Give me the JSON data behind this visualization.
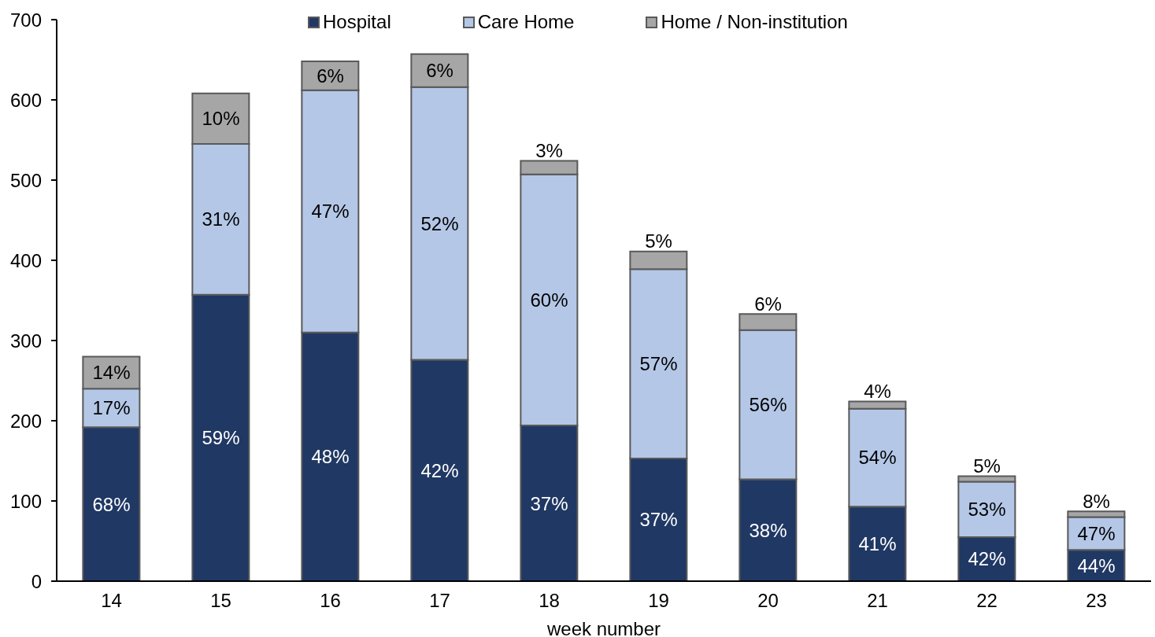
{
  "chart_data": {
    "type": "bar",
    "stacked": true,
    "xlabel": "week number",
    "categories": [
      "14",
      "15",
      "16",
      "17",
      "18",
      "19",
      "20",
      "21",
      "22",
      "23"
    ],
    "ylim": [
      0,
      700
    ],
    "yticks": [
      0,
      100,
      200,
      300,
      400,
      500,
      600,
      700
    ],
    "legend": "top",
    "series": [
      {
        "name": "Hospital",
        "color": "#203864",
        "values": [
          192,
          357,
          310,
          276,
          194,
          153,
          127,
          93,
          55,
          39
        ]
      },
      {
        "name": "Care Home",
        "color": "#b4c7e7",
        "values": [
          48,
          188,
          302,
          340,
          313,
          236,
          186,
          122,
          69,
          41
        ]
      },
      {
        "name": "Home / Non-institution",
        "color": "#a6a6a6",
        "values": [
          40,
          63,
          36,
          41,
          17,
          22,
          20,
          9,
          7,
          7
        ]
      }
    ],
    "annotations": [
      "68%",
      "17%",
      "14%",
      "59%",
      "31%",
      "10%",
      "48%",
      "47%",
      "6%",
      "42%",
      "52%",
      "6%",
      "37%",
      "60%",
      "3%",
      "37%",
      "57%",
      "5%",
      "38%",
      "56%",
      "6%",
      "41%",
      "54%",
      "4%",
      "42%",
      "53%",
      "5%",
      "44%",
      "47%",
      "8%"
    ]
  }
}
